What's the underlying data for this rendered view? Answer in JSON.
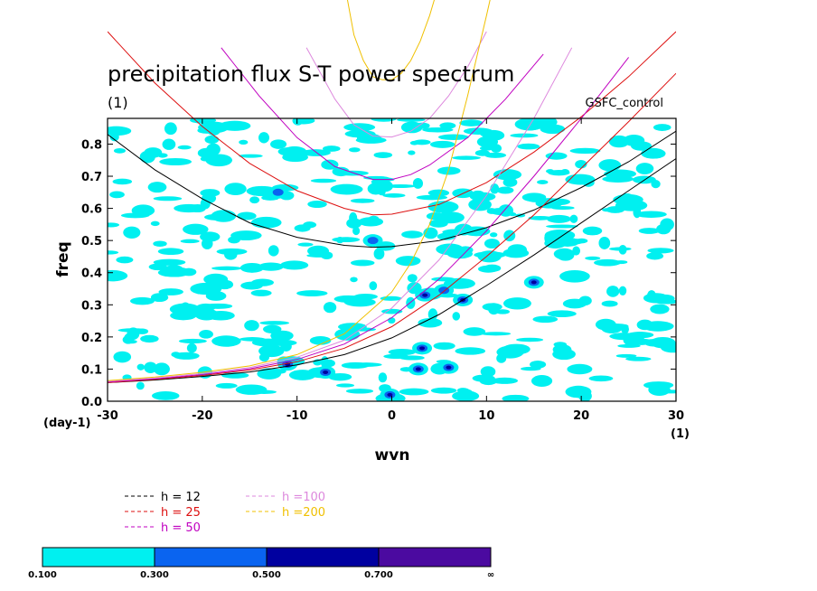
{
  "chart_data": {
    "type": "heatmap",
    "title": "precipitation flux S-T power spectrum",
    "subtitle_left": "(1)",
    "subtitle_right": "GSFC_control",
    "xlabel": "wvn",
    "ylabel": "freq",
    "x_unit_label": "(1)",
    "y_unit_label": "(day-1)",
    "xlim": [
      -30,
      30
    ],
    "ylim": [
      0,
      0.88
    ],
    "x_ticks": [
      -30,
      -20,
      -10,
      0,
      10,
      20,
      30
    ],
    "x_tick_labels": [
      "-30",
      "-20",
      "-10",
      "0",
      "10",
      "20",
      "30"
    ],
    "y_ticks": [
      0,
      0.1,
      0.2,
      0.3,
      0.4,
      0.5,
      0.6,
      0.7,
      0.8
    ],
    "y_tick_labels": [
      "0.0",
      "0.1",
      "0.2",
      "0.3",
      "0.4",
      "0.5",
      "0.6",
      "0.7",
      "0.8"
    ],
    "contour_levels": [
      0.1,
      0.3,
      0.5,
      0.7
    ],
    "colorbar": {
      "labels": [
        "0.100",
        "0.300",
        "0.500",
        "0.700",
        "∞"
      ],
      "colors": [
        "#00f0f0",
        "#0a64f0",
        "#0000a0",
        "#4b0aa0"
      ]
    },
    "dispersion_curves": [
      {
        "name": "h = 12",
        "color": "#000000",
        "points": [
          [
            -30,
            0.83
          ],
          [
            -25,
            0.72
          ],
          [
            -20,
            0.63
          ],
          [
            -15,
            0.555
          ],
          [
            -10,
            0.51
          ],
          [
            -5,
            0.485
          ],
          [
            -2,
            0.479
          ],
          [
            0,
            0.481
          ],
          [
            5,
            0.5
          ],
          [
            10,
            0.54
          ],
          [
            15,
            0.595
          ],
          [
            20,
            0.665
          ],
          [
            25,
            0.745
          ],
          [
            30,
            0.84
          ]
        ]
      },
      {
        "name": "h = 12",
        "color": "#000000",
        "points": [
          [
            -30,
            0.058
          ],
          [
            -25,
            0.066
          ],
          [
            -20,
            0.077
          ],
          [
            -15,
            0.091
          ],
          [
            -10,
            0.113
          ],
          [
            -5,
            0.145
          ],
          [
            0,
            0.197
          ],
          [
            5,
            0.27
          ],
          [
            10,
            0.36
          ],
          [
            15,
            0.455
          ],
          [
            20,
            0.555
          ],
          [
            25,
            0.655
          ],
          [
            30,
            0.755
          ]
        ]
      },
      {
        "name": "h = 25",
        "color": "#dd1010",
        "points": [
          [
            -30,
            1.15
          ],
          [
            -25,
            0.99
          ],
          [
            -20,
            0.855
          ],
          [
            -15,
            0.74
          ],
          [
            -10,
            0.655
          ],
          [
            -5,
            0.6
          ],
          [
            -2,
            0.58
          ],
          [
            0,
            0.582
          ],
          [
            5,
            0.612
          ],
          [
            10,
            0.68
          ],
          [
            15,
            0.775
          ],
          [
            20,
            0.885
          ],
          [
            25,
            1.01
          ],
          [
            30,
            1.15
          ]
        ]
      },
      {
        "name": "h = 25",
        "color": "#dd1010",
        "points": [
          [
            -30,
            0.058
          ],
          [
            -25,
            0.068
          ],
          [
            -20,
            0.08
          ],
          [
            -15,
            0.097
          ],
          [
            -10,
            0.123
          ],
          [
            -5,
            0.165
          ],
          [
            0,
            0.232
          ],
          [
            5,
            0.33
          ],
          [
            10,
            0.45
          ],
          [
            15,
            0.58
          ],
          [
            20,
            0.725
          ],
          [
            25,
            0.87
          ],
          [
            30,
            1.02
          ]
        ]
      },
      {
        "name": "h = 50",
        "color": "#c000c0",
        "points": [
          [
            -18,
            1.1
          ],
          [
            -14,
            0.95
          ],
          [
            -10,
            0.82
          ],
          [
            -6,
            0.73
          ],
          [
            -2,
            0.69
          ],
          [
            0,
            0.69
          ],
          [
            2,
            0.705
          ],
          [
            4,
            0.735
          ],
          [
            8,
            0.82
          ],
          [
            12,
            0.94
          ],
          [
            16,
            1.08
          ]
        ]
      },
      {
        "name": "h = 50",
        "color": "#c000c0",
        "points": [
          [
            -30,
            0.06
          ],
          [
            -25,
            0.07
          ],
          [
            -20,
            0.083
          ],
          [
            -15,
            0.101
          ],
          [
            -10,
            0.13
          ],
          [
            -5,
            0.178
          ],
          [
            0,
            0.26
          ],
          [
            5,
            0.38
          ],
          [
            10,
            0.53
          ],
          [
            15,
            0.7
          ],
          [
            20,
            0.88
          ],
          [
            25,
            1.07
          ]
        ]
      },
      {
        "name": "h =100",
        "color": "#dd88dd",
        "points": [
          [
            -9,
            1.1
          ],
          [
            -6,
            0.94
          ],
          [
            -4,
            0.86
          ],
          [
            -2,
            0.825
          ],
          [
            0,
            0.822
          ],
          [
            2,
            0.84
          ],
          [
            4,
            0.88
          ],
          [
            6,
            0.95
          ],
          [
            8,
            1.04
          ],
          [
            10,
            1.15
          ]
        ]
      },
      {
        "name": "h =100",
        "color": "#dd88dd",
        "points": [
          [
            -30,
            0.062
          ],
          [
            -25,
            0.072
          ],
          [
            -20,
            0.086
          ],
          [
            -15,
            0.105
          ],
          [
            -10,
            0.137
          ],
          [
            -5,
            0.19
          ],
          [
            0,
            0.29
          ],
          [
            5,
            0.44
          ],
          [
            10,
            0.64
          ],
          [
            15,
            0.88
          ],
          [
            19,
            1.1
          ]
        ]
      },
      {
        "name": "h =200",
        "color": "#f0c000",
        "points": [
          [
            -5,
            1.3
          ],
          [
            -4,
            1.14
          ],
          [
            -3,
            1.06
          ],
          [
            -2,
            1.01
          ],
          [
            -1,
            1.0
          ],
          [
            0,
            1.0
          ],
          [
            1,
            1.02
          ],
          [
            2,
            1.06
          ],
          [
            3,
            1.12
          ],
          [
            4,
            1.2
          ],
          [
            5,
            1.3
          ]
        ]
      },
      {
        "name": "h =200",
        "color": "#f0c000",
        "points": [
          [
            -30,
            0.064
          ],
          [
            -25,
            0.075
          ],
          [
            -20,
            0.09
          ],
          [
            -15,
            0.11
          ],
          [
            -10,
            0.145
          ],
          [
            -5,
            0.21
          ],
          [
            0,
            0.34
          ],
          [
            2,
            0.43
          ],
          [
            4,
            0.55
          ],
          [
            6,
            0.72
          ],
          [
            8,
            0.95
          ],
          [
            10,
            1.2
          ],
          [
            11,
            1.33
          ]
        ]
      }
    ],
    "legend": [
      {
        "label": "h = 12",
        "color": "#000000"
      },
      {
        "label": "h = 25",
        "color": "#dd1010"
      },
      {
        "label": "h = 50",
        "color": "#c000c0"
      },
      {
        "label": "h =100",
        "color": "#dd88dd"
      },
      {
        "label": "h =200",
        "color": "#f0c000"
      }
    ],
    "contour_patches": [
      {
        "x": 3.2,
        "y": 0.165,
        "level": 2
      },
      {
        "x": 2.8,
        "y": 0.1,
        "level": 2
      },
      {
        "x": 6.0,
        "y": 0.105,
        "level": 2
      },
      {
        "x": -7.0,
        "y": 0.09,
        "level": 2
      },
      {
        "x": -11.0,
        "y": 0.115,
        "level": 2
      },
      {
        "x": 3.5,
        "y": 0.33,
        "level": 2
      },
      {
        "x": 7.5,
        "y": 0.315,
        "level": 2
      },
      {
        "x": -0.2,
        "y": 0.02,
        "level": 2
      },
      {
        "x": 15.0,
        "y": 0.37,
        "level": 2
      },
      {
        "x": -12.0,
        "y": 0.65,
        "level": 1
      },
      {
        "x": -2.0,
        "y": 0.5,
        "level": 1
      },
      {
        "x": 5.5,
        "y": 0.345,
        "level": 1
      }
    ]
  }
}
